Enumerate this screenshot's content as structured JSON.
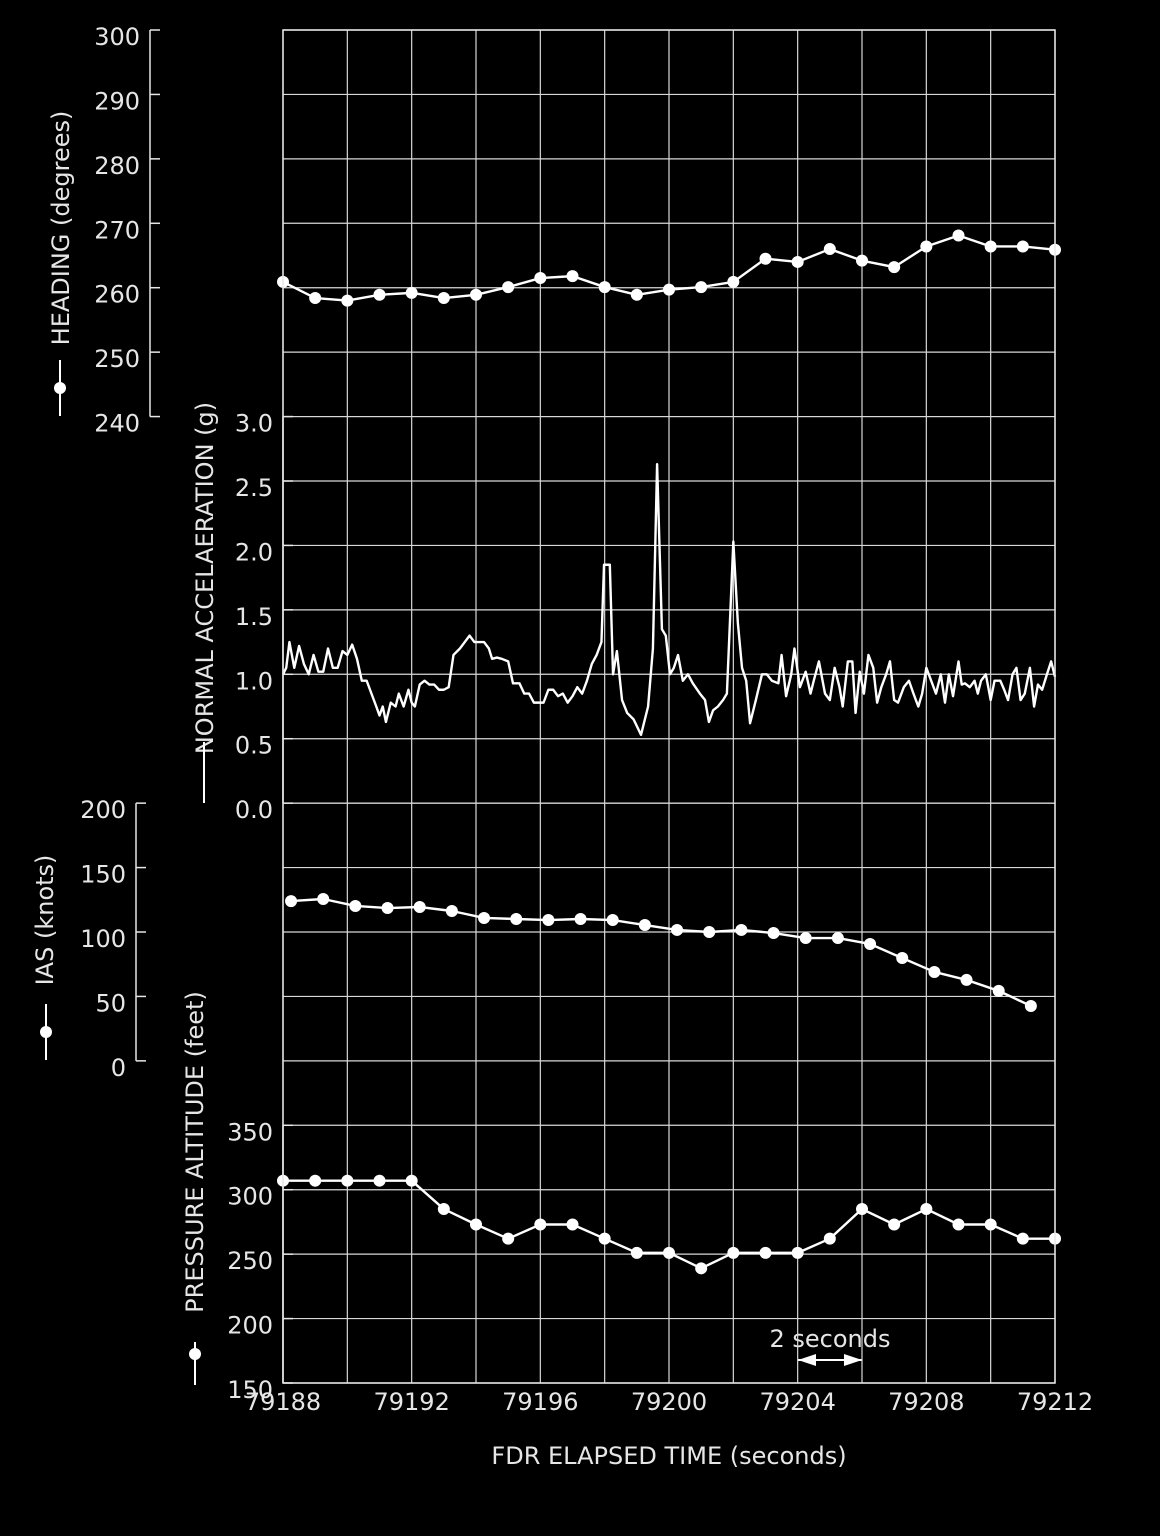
{
  "chart_data": [
    {
      "type": "line",
      "ylabel": "HEADING (degrees)",
      "color": "#ffffff",
      "markers": true,
      "x": [
        79188,
        79189,
        79190,
        79191,
        79192,
        79193,
        79194,
        79195,
        79196,
        79197,
        79198,
        79199,
        79200,
        79201,
        79202,
        79203,
        79204,
        79205,
        79206,
        79207,
        79208,
        79209,
        79210,
        79211,
        79212
      ],
      "values": [
        260.9,
        258.4,
        258.0,
        258.9,
        259.2,
        258.4,
        258.9,
        260.1,
        261.5,
        261.8,
        260.1,
        258.9,
        259.7,
        260.1,
        260.9,
        264.5,
        264.0,
        266.0,
        264.2,
        263.2,
        266.4,
        268.1,
        266.4,
        266.4,
        265.9
      ],
      "ylim": [
        240,
        300
      ],
      "yticks": [
        240,
        250,
        260,
        270,
        280,
        290,
        300
      ]
    },
    {
      "type": "line",
      "ylabel": "NORMAL ACCELAERATION (g)",
      "color": "#ffffff",
      "markers": false,
      "x": [
        79188.0,
        79188.1,
        79188.2,
        79188.35,
        79188.5,
        79188.65,
        79188.8,
        79188.95,
        79189.1,
        79189.25,
        79189.4,
        79189.55,
        79189.7,
        79189.85,
        79190.0,
        79190.15,
        79190.3,
        79190.45,
        79190.6,
        79190.75,
        79190.9,
        79191.0,
        79191.1,
        79191.2,
        79191.35,
        79191.5,
        79191.6,
        79191.75,
        79191.9,
        79192.0,
        79192.1,
        79192.25,
        79192.4,
        79192.55,
        79192.7,
        79192.85,
        79193.0,
        79193.15,
        79193.3,
        79193.5,
        79193.65,
        79193.8,
        79193.95,
        79194.1,
        79194.25,
        79194.4,
        79194.5,
        79194.65,
        79194.8,
        79195.0,
        79195.15,
        79195.35,
        79195.5,
        79195.65,
        79195.8,
        79196.0,
        79196.1,
        79196.25,
        79196.4,
        79196.55,
        79196.7,
        79196.85,
        79197.0,
        79197.15,
        79197.3,
        79197.45,
        79197.6,
        79197.75,
        79197.9,
        79197.98,
        79198.16,
        79198.26,
        79198.38,
        79198.54,
        79198.7,
        79198.9,
        79199.13,
        79199.35,
        79199.5,
        79199.63,
        79199.78,
        79199.9,
        79200.03,
        79200.15,
        79200.28,
        79200.43,
        79200.59,
        79200.74,
        79200.96,
        79201.12,
        79201.24,
        79201.37,
        79201.52,
        79201.68,
        79201.8,
        79202.0,
        79202.14,
        79202.27,
        79202.4,
        79202.52,
        79202.7,
        79202.89,
        79203.04,
        79203.2,
        79203.4,
        79203.5,
        79203.64,
        79203.8,
        79203.9,
        79204.07,
        79204.25,
        79204.4,
        79204.5,
        79204.66,
        79204.85,
        79205.0,
        79205.15,
        79205.3,
        79205.4,
        79205.56,
        79205.7,
        79205.8,
        79205.93,
        79206.06,
        79206.2,
        79206.35,
        79206.47,
        79206.6,
        79206.75,
        79206.87,
        79207.0,
        79207.12,
        79207.3,
        79207.46,
        79207.6,
        79207.75,
        79207.87,
        79208.0,
        79208.15,
        79208.3,
        79208.45,
        79208.58,
        79208.7,
        79208.83,
        79209.0,
        79209.1,
        79209.2,
        79209.35,
        79209.5,
        79209.6,
        79209.7,
        79209.85,
        79210.0,
        79210.12,
        79210.3,
        79210.42,
        79210.54,
        79210.68,
        79210.8,
        79210.93,
        79211.06,
        79211.22,
        79211.35,
        79211.47,
        79211.6,
        79211.75,
        79211.88,
        79212.0
      ],
      "values": [
        1.0,
        1.05,
        1.25,
        1.05,
        1.22,
        1.08,
        1.0,
        1.15,
        1.02,
        1.02,
        1.2,
        1.05,
        1.05,
        1.18,
        1.15,
        1.23,
        1.12,
        0.95,
        0.95,
        0.85,
        0.75,
        0.68,
        0.75,
        0.63,
        0.78,
        0.75,
        0.85,
        0.75,
        0.88,
        0.78,
        0.75,
        0.92,
        0.95,
        0.92,
        0.92,
        0.88,
        0.88,
        0.9,
        1.15,
        1.2,
        1.25,
        1.3,
        1.25,
        1.25,
        1.25,
        1.2,
        1.12,
        1.13,
        1.12,
        1.1,
        0.93,
        0.93,
        0.85,
        0.85,
        0.78,
        0.78,
        0.78,
        0.88,
        0.88,
        0.83,
        0.85,
        0.78,
        0.83,
        0.9,
        0.85,
        0.95,
        1.08,
        1.15,
        1.25,
        1.85,
        1.85,
        1.0,
        1.18,
        0.8,
        0.7,
        0.65,
        0.53,
        0.75,
        1.2,
        2.63,
        1.35,
        1.3,
        1.0,
        1.05,
        1.15,
        0.95,
        1.0,
        0.93,
        0.85,
        0.8,
        0.63,
        0.72,
        0.75,
        0.8,
        0.85,
        2.03,
        1.4,
        1.05,
        0.95,
        0.62,
        0.8,
        1.0,
        1.0,
        0.95,
        0.93,
        1.15,
        0.83,
        1.0,
        1.2,
        0.9,
        1.02,
        0.85,
        0.95,
        1.1,
        0.85,
        0.8,
        1.05,
        0.9,
        0.75,
        1.1,
        1.1,
        0.7,
        1.02,
        0.85,
        1.15,
        1.05,
        0.78,
        0.9,
        1.0,
        1.1,
        0.8,
        0.78,
        0.9,
        0.95,
        0.85,
        0.75,
        0.85,
        1.05,
        0.95,
        0.85,
        1.0,
        0.78,
        1.0,
        0.83,
        1.1,
        0.92,
        0.93,
        0.9,
        0.95,
        0.85,
        0.95,
        1.0,
        0.8,
        0.95,
        0.95,
        0.88,
        0.8,
        1.0,
        1.05,
        0.8,
        0.85,
        1.05,
        0.75,
        0.92,
        0.88,
        1.0,
        1.1,
        0.98
      ],
      "ylim": [
        0,
        3
      ],
      "yticks": [
        {
          "value": 0,
          "label": "0.0"
        },
        0.5,
        {
          "value": 1,
          "label": "1.0"
        },
        1.5,
        {
          "value": 2,
          "label": "2.0"
        },
        2.5,
        {
          "value": 3,
          "label": "3.0"
        }
      ]
    },
    {
      "type": "line",
      "ylabel": "IAS (knots)",
      "color": "#ffffff",
      "markers": true,
      "x": [
        79188.25,
        79189.25,
        79190.25,
        79191.25,
        79192.25,
        79193.25,
        79194.25,
        79195.25,
        79196.25,
        79197.25,
        79198.25,
        79199.25,
        79200.25,
        79201.25,
        79202.25,
        79203.25,
        79204.25,
        79205.25,
        79206.25,
        79207.25,
        79208.25,
        79209.25,
        79210.25,
        79211.25
      ],
      "values": [
        124.0,
        125.6,
        120.2,
        118.6,
        119.4,
        116.3,
        110.9,
        110.1,
        109.3,
        110.1,
        109.3,
        105.4,
        101.6,
        100.0,
        101.6,
        99.2,
        95.3,
        95.3,
        90.7,
        79.8,
        69.0,
        62.8,
        54.3,
        42.6
      ],
      "ylim": [
        0,
        200
      ],
      "yticks": [
        0,
        50,
        100,
        150,
        200
      ]
    },
    {
      "type": "line",
      "ylabel": "PRESSURE ALTITUDE (feet)",
      "color": "#ffffff",
      "markers": true,
      "x": [
        79188,
        79189,
        79190,
        79191,
        79192,
        79193,
        79194,
        79195,
        79196,
        79197,
        79198,
        79199,
        79200,
        79201,
        79202,
        79203,
        79204,
        79205,
        79206,
        79207,
        79208,
        79209,
        79210,
        79211,
        79212
      ],
      "values": [
        307,
        307,
        307,
        307,
        307,
        285,
        273,
        262,
        273,
        273,
        262,
        251,
        251,
        239,
        251,
        251,
        251,
        262,
        285,
        273,
        285,
        273,
        273,
        262,
        262
      ],
      "ylim": [
        150,
        350
      ],
      "yticks": [
        150,
        200,
        250,
        300,
        350
      ],
      "xlim": [
        79188,
        79212
      ],
      "xticks": [
        79188,
        79192,
        79196,
        79200,
        79204,
        79208,
        79212
      ],
      "xminor": [
        79190,
        79194,
        79198,
        79202,
        79206,
        79210
      ],
      "xlabel": "FDR ELAPSED TIME (seconds)",
      "annotation": "2 seconds"
    }
  ]
}
